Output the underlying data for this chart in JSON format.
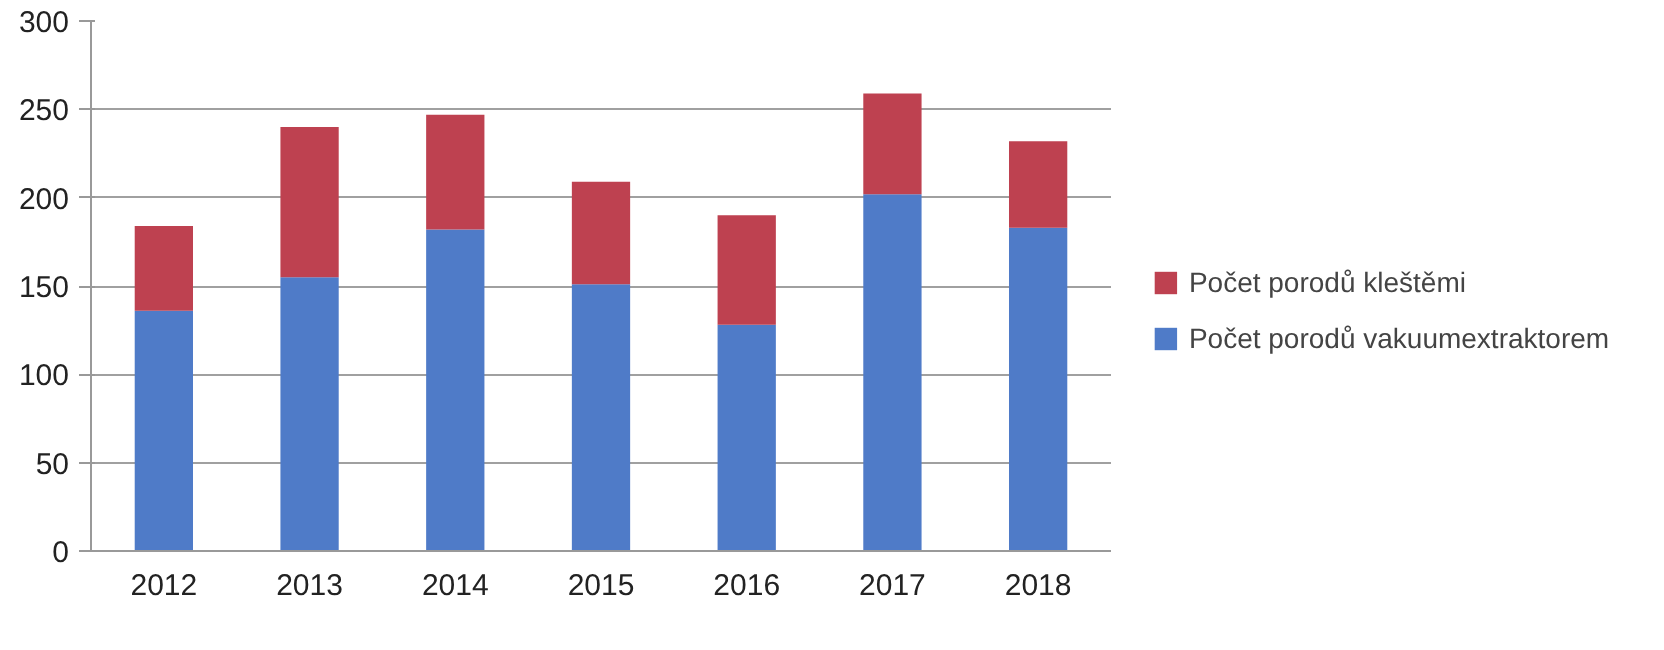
{
  "chart_data": {
    "type": "bar",
    "stacked": true,
    "categories": [
      "2012",
      "2013",
      "2014",
      "2015",
      "2016",
      "2017",
      "2018"
    ],
    "series": [
      {
        "name": "Počet porodů vakuumextraktorem",
        "color": "#4f7bc8",
        "values": [
          136,
          155,
          182,
          151,
          128,
          202,
          183
        ]
      },
      {
        "name": "Počet porodů kleštěmi",
        "color": "#be4150",
        "values": [
          48,
          85,
          65,
          58,
          62,
          57,
          49
        ]
      }
    ],
    "ylim": [
      0,
      300
    ],
    "yticks": [
      0,
      50,
      100,
      150,
      200,
      250,
      300
    ],
    "grid": "y",
    "legend": "right"
  }
}
